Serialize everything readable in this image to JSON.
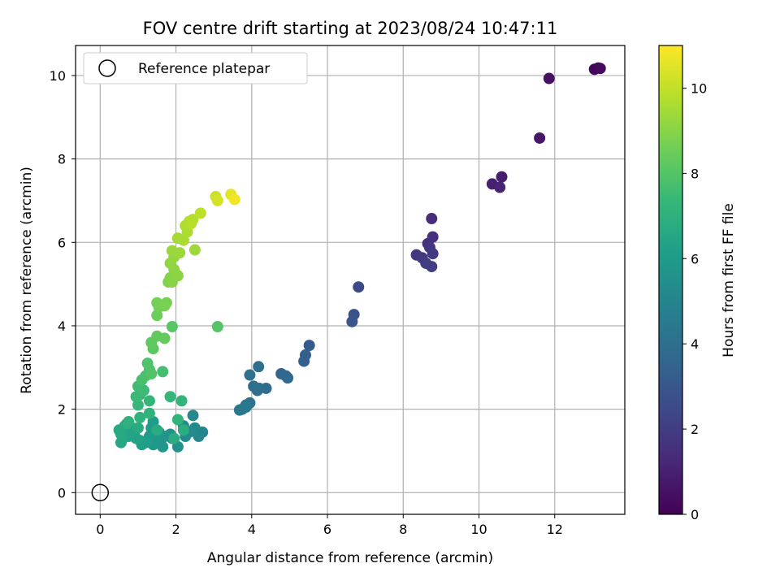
{
  "chart_data": {
    "type": "scatter",
    "title": "FOV centre drift starting at 2023/08/24 10:47:11",
    "xlabel": "Angular distance from reference (arcmin)",
    "ylabel": "Rotation from reference (arcmin)",
    "xlim": [
      -0.65,
      13.85
    ],
    "ylim": [
      -0.52,
      10.72
    ],
    "xticks": [
      0,
      2,
      4,
      6,
      8,
      10,
      12
    ],
    "yticks": [
      0,
      2,
      4,
      6,
      8,
      10
    ],
    "grid": true,
    "legend": {
      "placement": "top-left",
      "entries": [
        "Reference platepar"
      ]
    },
    "reference_point": {
      "label": "Reference platepar",
      "x": 0,
      "y": 0
    },
    "colorbar": {
      "label": "Hours from first FF file",
      "min": 0,
      "max": 11,
      "ticks": [
        0,
        2,
        4,
        6,
        8,
        10
      ],
      "colormap": "viridis",
      "colors": [
        "#440154",
        "#482878",
        "#3e4989",
        "#31688e",
        "#26828e",
        "#1f9e89",
        "#35b779",
        "#6ece58",
        "#b5de2b",
        "#fde725"
      ]
    },
    "points": [
      {
        "x": 13.15,
        "y": 10.18,
        "h": 0.1
      },
      {
        "x": 13.05,
        "y": 10.15,
        "h": 0.2
      },
      {
        "x": 13.2,
        "y": 10.17,
        "h": 0.3
      },
      {
        "x": 11.85,
        "y": 9.93,
        "h": 0.5
      },
      {
        "x": 11.6,
        "y": 8.5,
        "h": 0.7
      },
      {
        "x": 10.6,
        "y": 7.57,
        "h": 0.9
      },
      {
        "x": 10.35,
        "y": 7.4,
        "h": 1.0
      },
      {
        "x": 10.55,
        "y": 7.32,
        "h": 1.1
      },
      {
        "x": 8.75,
        "y": 6.57,
        "h": 1.4
      },
      {
        "x": 8.78,
        "y": 6.13,
        "h": 1.5
      },
      {
        "x": 8.65,
        "y": 5.97,
        "h": 1.6
      },
      {
        "x": 8.7,
        "y": 5.88,
        "h": 1.7
      },
      {
        "x": 8.35,
        "y": 5.7,
        "h": 1.8
      },
      {
        "x": 8.5,
        "y": 5.63,
        "h": 1.85
      },
      {
        "x": 8.78,
        "y": 5.73,
        "h": 1.9
      },
      {
        "x": 8.6,
        "y": 5.5,
        "h": 1.95
      },
      {
        "x": 8.75,
        "y": 5.42,
        "h": 2.0
      },
      {
        "x": 6.82,
        "y": 4.93,
        "h": 2.5
      },
      {
        "x": 6.7,
        "y": 4.27,
        "h": 2.8
      },
      {
        "x": 6.65,
        "y": 4.1,
        "h": 2.9
      },
      {
        "x": 5.52,
        "y": 3.53,
        "h": 3.2
      },
      {
        "x": 5.42,
        "y": 3.3,
        "h": 3.3
      },
      {
        "x": 5.38,
        "y": 3.15,
        "h": 3.35
      },
      {
        "x": 4.78,
        "y": 2.85,
        "h": 3.6
      },
      {
        "x": 4.95,
        "y": 2.75,
        "h": 3.65
      },
      {
        "x": 4.9,
        "y": 2.8,
        "h": 3.7
      },
      {
        "x": 4.38,
        "y": 2.5,
        "h": 3.85
      },
      {
        "x": 4.15,
        "y": 2.45,
        "h": 3.9
      },
      {
        "x": 4.05,
        "y": 2.55,
        "h": 3.95
      },
      {
        "x": 4.2,
        "y": 2.5,
        "h": 4.0
      },
      {
        "x": 4.18,
        "y": 3.02,
        "h": 4.05
      },
      {
        "x": 3.95,
        "y": 2.82,
        "h": 4.1
      },
      {
        "x": 3.95,
        "y": 2.15,
        "h": 4.2
      },
      {
        "x": 3.85,
        "y": 2.1,
        "h": 4.25
      },
      {
        "x": 3.75,
        "y": 2.0,
        "h": 4.3
      },
      {
        "x": 3.68,
        "y": 1.98,
        "h": 4.35
      },
      {
        "x": 3.85,
        "y": 2.05,
        "h": 4.4
      },
      {
        "x": 2.7,
        "y": 1.45,
        "h": 5.0
      },
      {
        "x": 2.6,
        "y": 1.35,
        "h": 5.1
      },
      {
        "x": 2.45,
        "y": 1.85,
        "h": 5.15
      },
      {
        "x": 2.5,
        "y": 1.55,
        "h": 5.2
      },
      {
        "x": 2.35,
        "y": 1.45,
        "h": 5.25
      },
      {
        "x": 2.25,
        "y": 1.35,
        "h": 5.3
      },
      {
        "x": 2.2,
        "y": 1.6,
        "h": 5.35
      },
      {
        "x": 2.05,
        "y": 1.1,
        "h": 5.5
      },
      {
        "x": 1.9,
        "y": 1.3,
        "h": 5.55
      },
      {
        "x": 1.85,
        "y": 1.4,
        "h": 5.6
      },
      {
        "x": 1.7,
        "y": 1.35,
        "h": 5.65
      },
      {
        "x": 1.6,
        "y": 1.25,
        "h": 5.7
      },
      {
        "x": 1.65,
        "y": 1.1,
        "h": 5.75
      },
      {
        "x": 1.55,
        "y": 1.45,
        "h": 5.8
      },
      {
        "x": 1.45,
        "y": 1.3,
        "h": 5.85
      },
      {
        "x": 1.4,
        "y": 1.15,
        "h": 5.9
      },
      {
        "x": 1.3,
        "y": 1.35,
        "h": 5.95
      },
      {
        "x": 1.35,
        "y": 1.55,
        "h": 6.0
      },
      {
        "x": 1.4,
        "y": 1.7,
        "h": 6.05
      },
      {
        "x": 1.2,
        "y": 1.2,
        "h": 6.1
      },
      {
        "x": 1.1,
        "y": 1.15,
        "h": 6.15
      },
      {
        "x": 1.05,
        "y": 1.25,
        "h": 6.2
      },
      {
        "x": 0.95,
        "y": 1.3,
        "h": 6.25
      },
      {
        "x": 0.9,
        "y": 1.45,
        "h": 6.3
      },
      {
        "x": 0.85,
        "y": 1.55,
        "h": 6.35
      },
      {
        "x": 0.75,
        "y": 1.35,
        "h": 6.4
      },
      {
        "x": 0.65,
        "y": 1.6,
        "h": 6.45
      },
      {
        "x": 0.6,
        "y": 1.3,
        "h": 6.5
      },
      {
        "x": 0.55,
        "y": 1.2,
        "h": 6.55
      },
      {
        "x": 0.5,
        "y": 1.5,
        "h": 6.6
      },
      {
        "x": 0.55,
        "y": 1.4,
        "h": 6.65
      },
      {
        "x": 1.0,
        "y": 1.55,
        "h": 6.7
      },
      {
        "x": 1.5,
        "y": 1.5,
        "h": 6.75
      },
      {
        "x": 1.95,
        "y": 1.3,
        "h": 6.8
      },
      {
        "x": 2.2,
        "y": 1.5,
        "h": 6.85
      },
      {
        "x": 0.7,
        "y": 1.65,
        "h": 6.9
      },
      {
        "x": 0.75,
        "y": 1.7,
        "h": 7.0
      },
      {
        "x": 1.05,
        "y": 1.8,
        "h": 7.05
      },
      {
        "x": 1.3,
        "y": 1.9,
        "h": 7.1
      },
      {
        "x": 2.05,
        "y": 1.75,
        "h": 7.15
      },
      {
        "x": 2.15,
        "y": 2.2,
        "h": 7.2
      },
      {
        "x": 1.85,
        "y": 2.3,
        "h": 7.25
      },
      {
        "x": 1.3,
        "y": 2.2,
        "h": 7.3
      },
      {
        "x": 1.0,
        "y": 2.1,
        "h": 7.35
      },
      {
        "x": 1.05,
        "y": 2.35,
        "h": 7.4
      },
      {
        "x": 0.95,
        "y": 2.3,
        "h": 7.45
      },
      {
        "x": 1.15,
        "y": 2.45,
        "h": 7.5
      },
      {
        "x": 1.0,
        "y": 2.55,
        "h": 7.55
      },
      {
        "x": 1.65,
        "y": 2.9,
        "h": 7.7
      },
      {
        "x": 1.1,
        "y": 2.7,
        "h": 7.75
      },
      {
        "x": 1.2,
        "y": 2.8,
        "h": 7.8
      },
      {
        "x": 1.3,
        "y": 2.95,
        "h": 7.85
      },
      {
        "x": 1.25,
        "y": 3.1,
        "h": 7.9
      },
      {
        "x": 1.35,
        "y": 2.85,
        "h": 7.95
      },
      {
        "x": 3.1,
        "y": 3.98,
        "h": 8.0
      },
      {
        "x": 1.9,
        "y": 3.98,
        "h": 8.1
      },
      {
        "x": 1.4,
        "y": 3.45,
        "h": 8.2
      },
      {
        "x": 1.35,
        "y": 3.6,
        "h": 8.25
      },
      {
        "x": 1.5,
        "y": 3.75,
        "h": 8.3
      },
      {
        "x": 1.7,
        "y": 3.7,
        "h": 8.35
      },
      {
        "x": 1.5,
        "y": 4.25,
        "h": 8.5
      },
      {
        "x": 1.55,
        "y": 4.45,
        "h": 8.6
      },
      {
        "x": 1.5,
        "y": 4.55,
        "h": 8.65
      },
      {
        "x": 1.75,
        "y": 4.55,
        "h": 8.7
      },
      {
        "x": 1.7,
        "y": 4.48,
        "h": 8.75
      },
      {
        "x": 1.8,
        "y": 5.05,
        "h": 8.9
      },
      {
        "x": 1.85,
        "y": 5.15,
        "h": 8.95
      },
      {
        "x": 1.9,
        "y": 5.05,
        "h": 9.0
      },
      {
        "x": 2.05,
        "y": 5.2,
        "h": 9.05
      },
      {
        "x": 1.95,
        "y": 5.35,
        "h": 9.1
      },
      {
        "x": 1.85,
        "y": 5.5,
        "h": 9.15
      },
      {
        "x": 1.95,
        "y": 5.65,
        "h": 9.2
      },
      {
        "x": 1.9,
        "y": 5.8,
        "h": 9.3
      },
      {
        "x": 2.1,
        "y": 5.75,
        "h": 9.35
      },
      {
        "x": 2.5,
        "y": 5.82,
        "h": 9.4
      },
      {
        "x": 2.05,
        "y": 6.1,
        "h": 9.5
      },
      {
        "x": 2.2,
        "y": 6.05,
        "h": 9.55
      },
      {
        "x": 2.3,
        "y": 6.25,
        "h": 9.6
      },
      {
        "x": 2.25,
        "y": 6.4,
        "h": 9.65
      },
      {
        "x": 2.35,
        "y": 6.5,
        "h": 9.7
      },
      {
        "x": 2.45,
        "y": 6.55,
        "h": 9.75
      },
      {
        "x": 2.4,
        "y": 6.45,
        "h": 9.8
      },
      {
        "x": 2.65,
        "y": 6.7,
        "h": 9.9
      },
      {
        "x": 3.05,
        "y": 7.1,
        "h": 10.2
      },
      {
        "x": 3.1,
        "y": 7.0,
        "h": 10.3
      },
      {
        "x": 3.45,
        "y": 7.15,
        "h": 10.6
      },
      {
        "x": 3.55,
        "y": 7.03,
        "h": 10.8
      }
    ]
  }
}
